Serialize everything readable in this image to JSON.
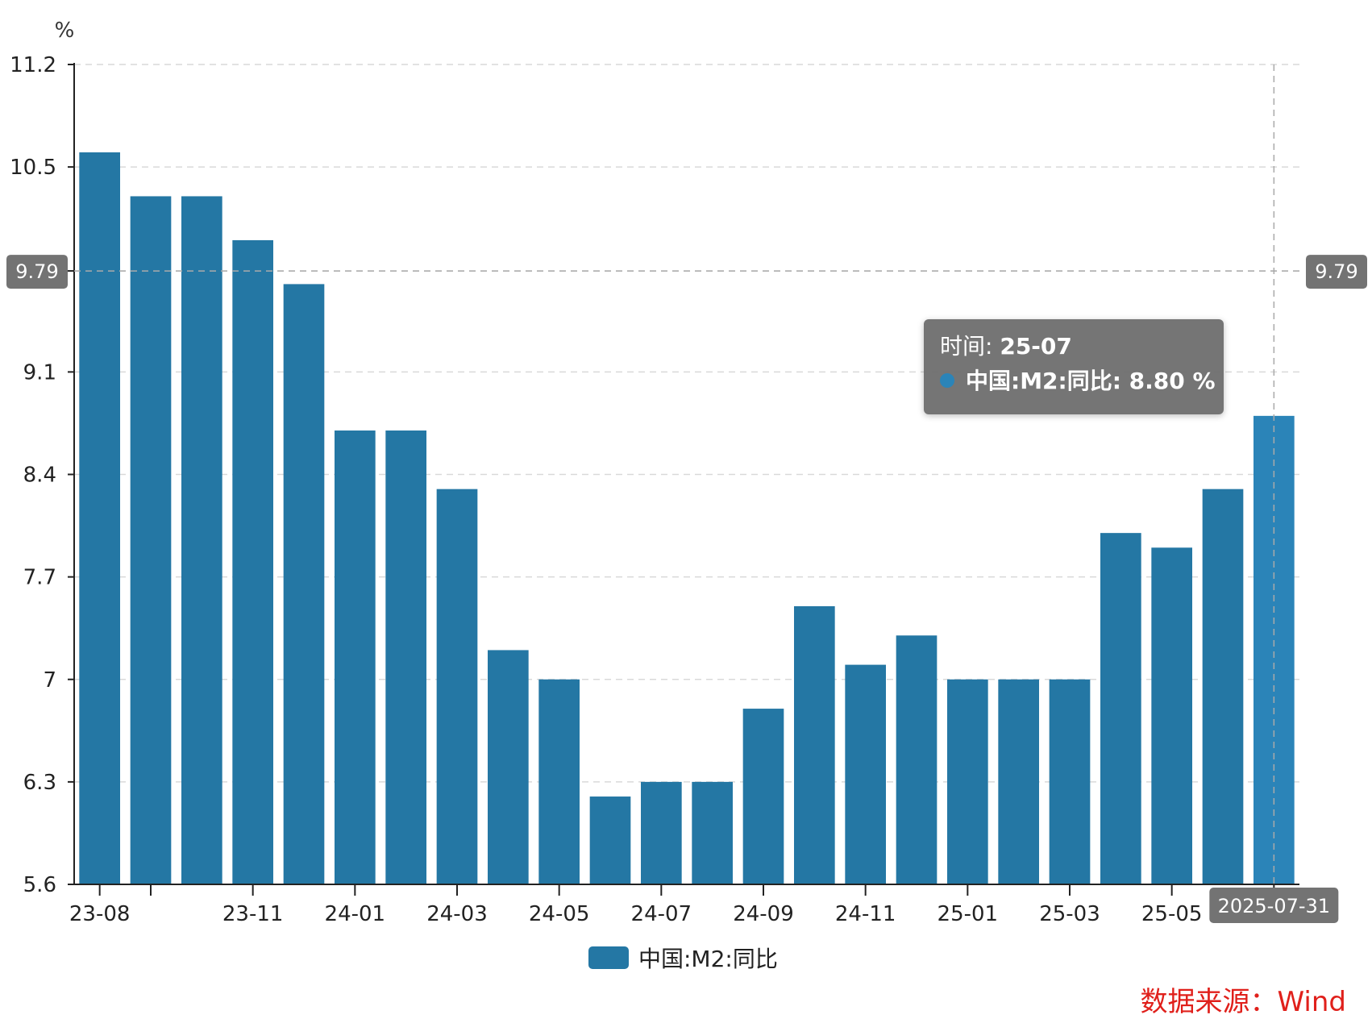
{
  "chart_data": {
    "type": "bar",
    "title": "",
    "xlabel": "",
    "ylabel": "%",
    "categories": [
      "23-08",
      "23-09",
      "23-10",
      "23-11",
      "23-12",
      "24-01",
      "24-02",
      "24-03",
      "24-04",
      "24-05",
      "24-06",
      "24-07",
      "24-08",
      "24-09",
      "24-10",
      "24-11",
      "24-12",
      "25-01",
      "25-02",
      "25-03",
      "25-04",
      "25-05",
      "25-06",
      "25-07"
    ],
    "x_tick_labels": [
      "23-08",
      "",
      "23-11",
      "24-01",
      "24-03",
      "24-05",
      "24-07",
      "24-09",
      "24-11",
      "25-01",
      "25-03",
      "25-05",
      "25-07"
    ],
    "series": [
      {
        "name": "中国:M2:同比",
        "values": [
          10.6,
          10.3,
          10.3,
          10.0,
          9.7,
          8.7,
          8.7,
          8.3,
          7.2,
          7.0,
          6.2,
          6.3,
          6.3,
          6.8,
          7.5,
          7.1,
          7.3,
          7.0,
          7.0,
          7.0,
          8.0,
          7.9,
          8.3,
          8.8
        ]
      }
    ],
    "yticks": [
      "5.6",
      "6.3",
      "7",
      "7.7",
      "8.4",
      "9.1",
      "9.79",
      "10.5",
      "11.2"
    ],
    "ylim": [
      5.6,
      11.2
    ],
    "grid": true,
    "legend_position": "bottom-center",
    "crosshair": {
      "y_value": 9.79,
      "y_label": "9.79",
      "x_category": "25-07",
      "x_label": "2025-07-31"
    },
    "colors": {
      "bar": "#2477a4",
      "highlight": "#2b84b8"
    }
  },
  "tooltip": {
    "time_label": "时间: ",
    "time_value": "25-07",
    "series_text": "中国:M2:同比: 8.80  %"
  },
  "legend": {
    "label": "中国:M2:同比"
  },
  "source": "数据来源：Wind"
}
